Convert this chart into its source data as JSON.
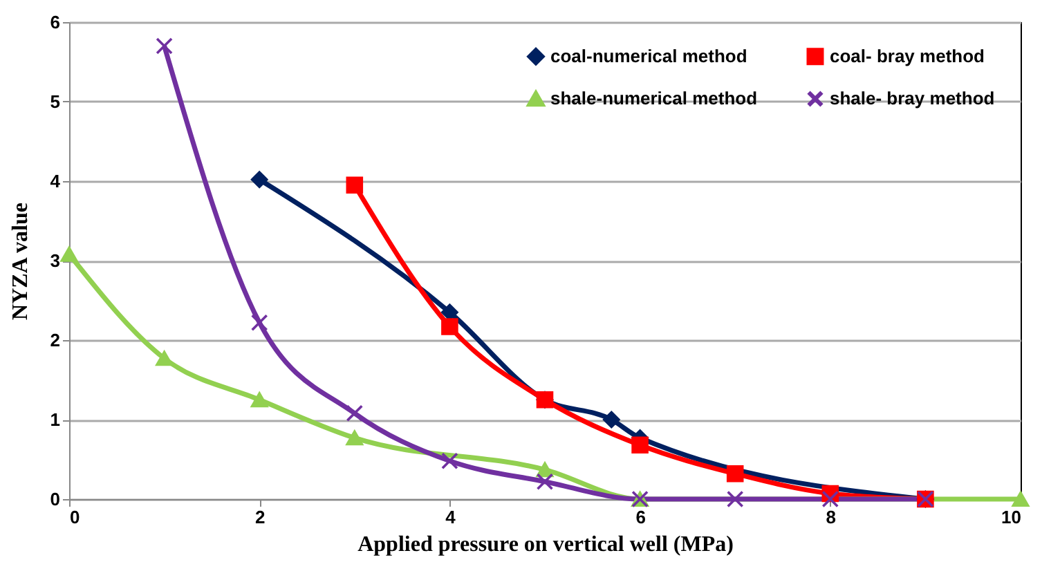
{
  "chart_data": {
    "type": "line",
    "xlabel": "Applied pressure on vertical well (MPa)",
    "ylabel": "NYZA value",
    "xlim": [
      0,
      10
    ],
    "xticks": [
      0,
      2,
      4,
      6,
      8,
      10
    ],
    "ylim": [
      0,
      6
    ],
    "yticks": [
      0,
      1,
      2,
      3,
      4,
      5,
      6
    ],
    "grid": "y",
    "legend": "top right",
    "line_style": "solid",
    "series": [
      {
        "name": "coal-numerical method",
        "color": "#002060",
        "marker": "diamond",
        "x": [
          2,
          4,
          5,
          5.7,
          6,
          9
        ],
        "values": [
          4.02,
          2.35,
          1.25,
          1.0,
          0.77,
          0
        ]
      },
      {
        "name": "coal- bray method",
        "color": "#ff0000",
        "marker": "square",
        "x": [
          3,
          4,
          5,
          6,
          7,
          8,
          9
        ],
        "values": [
          3.95,
          2.17,
          1.25,
          0.68,
          0.32,
          0.07,
          0
        ]
      },
      {
        "name": "shale-numerical method",
        "color": "#92d050",
        "marker": "triangle",
        "x": [
          0,
          1,
          2,
          3,
          5,
          6,
          10
        ],
        "values": [
          3.08,
          1.77,
          1.25,
          0.77,
          0.37,
          0,
          0
        ]
      },
      {
        "name": "shale- bray method",
        "color": "#7030a0",
        "marker": "cross",
        "x": [
          1,
          2,
          3,
          4,
          5,
          6,
          7,
          8,
          9
        ],
        "values": [
          5.7,
          2.22,
          1.08,
          0.48,
          0.22,
          0,
          0,
          0,
          0
        ]
      }
    ]
  }
}
